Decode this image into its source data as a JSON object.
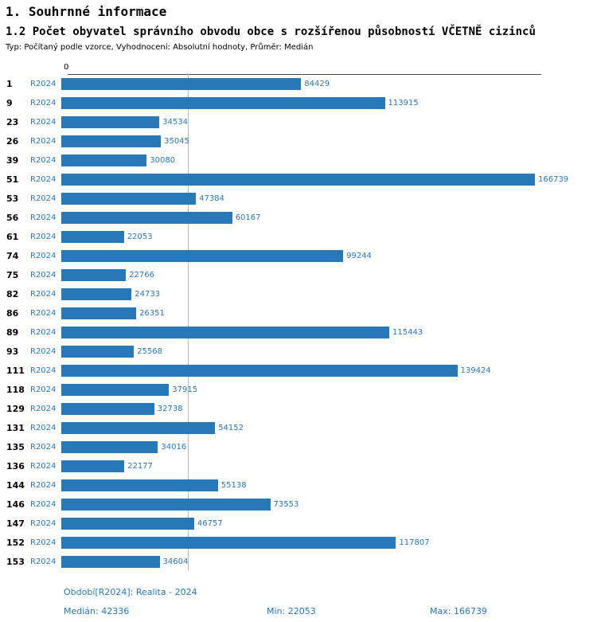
{
  "header": {
    "title": "1. Souhrnné informace",
    "subtitle": "1.2 Počet obyvatel správního obvodu obce s rozšířenou působností VČETNĚ cizinců",
    "meta": "Typ: Počítaný podle vzorce, Vyhodnocení: Absolutní hodnoty, Průměr: Medián"
  },
  "chart_data": {
    "type": "bar",
    "orientation": "horizontal",
    "zero_label": "0",
    "categories": [
      "1",
      "9",
      "23",
      "26",
      "39",
      "51",
      "53",
      "56",
      "61",
      "74",
      "75",
      "82",
      "86",
      "89",
      "93",
      "111",
      "118",
      "129",
      "131",
      "135",
      "136",
      "144",
      "146",
      "147",
      "152",
      "153"
    ],
    "series": [
      {
        "name": "R2024",
        "values": [
          84429,
          113915,
          34534,
          35045,
          30080,
          166739,
          47384,
          60167,
          22053,
          99244,
          22766,
          24733,
          26351,
          115443,
          25568,
          139424,
          37915,
          32738,
          54152,
          34016,
          22177,
          55138,
          73553,
          46757,
          117807,
          34604
        ]
      }
    ],
    "xlim": [
      0,
      166739
    ],
    "median_line_value": 42336,
    "value_labels": true,
    "grid": "median-only",
    "legend_position": "none"
  },
  "footer": {
    "period": "Období[R2024]: Realita - 2024",
    "median": "Medián: 42336",
    "min": "Min: 22053",
    "max": "Max: 166739"
  },
  "colors": {
    "accent": "#2878b8",
    "median_line": "#b8b8b8",
    "axis": "#444444",
    "category_text": "#000000"
  }
}
